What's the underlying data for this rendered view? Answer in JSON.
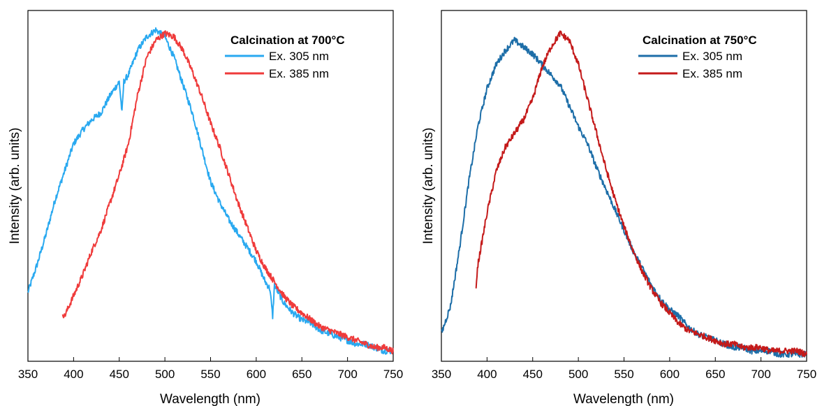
{
  "chart_data": [
    {
      "type": "line",
      "xlabel": "Wavelength (nm)",
      "ylabel": "Intensity (arb. units)",
      "xlim": [
        350,
        750
      ],
      "ylim": [
        0,
        1.0
      ],
      "xticks": [
        "350",
        "400",
        "450",
        "500",
        "550",
        "600",
        "650",
        "700",
        "750"
      ],
      "yticks_shown": false,
      "legend_title": "Calcination at 700°C",
      "legend_position": "top-right",
      "series": [
        {
          "name": "Ex. 305 nm",
          "color": "#29a9f0",
          "x": [
            350,
            360,
            370,
            380,
            390,
            400,
            410,
            420,
            430,
            440,
            450,
            453,
            455,
            460,
            470,
            480,
            490,
            500,
            510,
            520,
            530,
            540,
            550,
            560,
            570,
            580,
            590,
            600,
            610,
            615,
            618,
            620,
            630,
            640,
            650,
            660,
            670,
            680,
            690,
            700,
            710,
            720,
            730,
            740,
            750
          ],
          "y": [
            0.2,
            0.28,
            0.37,
            0.47,
            0.55,
            0.63,
            0.67,
            0.7,
            0.72,
            0.77,
            0.81,
            0.72,
            0.81,
            0.83,
            0.9,
            0.94,
            0.96,
            0.94,
            0.88,
            0.8,
            0.72,
            0.62,
            0.52,
            0.46,
            0.41,
            0.37,
            0.33,
            0.29,
            0.23,
            0.21,
            0.13,
            0.22,
            0.17,
            0.14,
            0.12,
            0.11,
            0.09,
            0.08,
            0.07,
            0.06,
            0.05,
            0.05,
            0.04,
            0.03,
            0.03
          ]
        },
        {
          "name": "Ex. 385 nm",
          "color": "#ef3b3b",
          "x": [
            388,
            390,
            400,
            410,
            420,
            430,
            440,
            450,
            460,
            470,
            480,
            490,
            500,
            510,
            520,
            530,
            540,
            550,
            560,
            570,
            580,
            590,
            600,
            610,
            620,
            630,
            640,
            650,
            660,
            670,
            680,
            690,
            700,
            710,
            720,
            730,
            740,
            750
          ],
          "y": [
            0.14,
            0.13,
            0.19,
            0.25,
            0.32,
            0.38,
            0.46,
            0.54,
            0.63,
            0.77,
            0.88,
            0.93,
            0.95,
            0.94,
            0.9,
            0.84,
            0.77,
            0.69,
            0.62,
            0.54,
            0.46,
            0.39,
            0.32,
            0.27,
            0.23,
            0.19,
            0.16,
            0.14,
            0.12,
            0.1,
            0.09,
            0.08,
            0.07,
            0.06,
            0.05,
            0.04,
            0.04,
            0.03
          ]
        }
      ]
    },
    {
      "type": "line",
      "xlabel": "Wavelength (nm)",
      "ylabel": "Intensity (arb. units)",
      "xlim": [
        350,
        750
      ],
      "ylim": [
        0,
        1.0
      ],
      "xticks": [
        "350",
        "400",
        "450",
        "500",
        "550",
        "600",
        "650",
        "700",
        "750"
      ],
      "yticks_shown": false,
      "legend_title": "Calcination at 750°C",
      "legend_position": "top-right",
      "series": [
        {
          "name": "Ex. 305 nm",
          "color": "#1d6ea8",
          "x": [
            350,
            360,
            370,
            380,
            390,
            400,
            410,
            420,
            430,
            440,
            450,
            460,
            470,
            480,
            490,
            500,
            510,
            520,
            530,
            540,
            550,
            560,
            570,
            580,
            590,
            600,
            610,
            620,
            630,
            640,
            650,
            660,
            670,
            680,
            690,
            700,
            710,
            720,
            730,
            740,
            750
          ],
          "y": [
            0.08,
            0.16,
            0.33,
            0.52,
            0.68,
            0.79,
            0.86,
            0.9,
            0.93,
            0.91,
            0.89,
            0.86,
            0.83,
            0.8,
            0.74,
            0.68,
            0.63,
            0.56,
            0.5,
            0.44,
            0.38,
            0.32,
            0.27,
            0.22,
            0.18,
            0.15,
            0.13,
            0.1,
            0.08,
            0.07,
            0.06,
            0.05,
            0.04,
            0.04,
            0.03,
            0.03,
            0.03,
            0.02,
            0.02,
            0.02,
            0.02
          ]
        },
        {
          "name": "Ex. 385 nm",
          "color": "#c41a1a",
          "x": [
            388,
            390,
            400,
            410,
            420,
            430,
            440,
            450,
            460,
            470,
            480,
            490,
            500,
            510,
            520,
            530,
            540,
            550,
            560,
            570,
            580,
            590,
            600,
            610,
            620,
            630,
            640,
            650,
            660,
            670,
            680,
            690,
            700,
            710,
            720,
            730,
            740,
            750
          ],
          "y": [
            0.22,
            0.28,
            0.43,
            0.55,
            0.62,
            0.66,
            0.7,
            0.76,
            0.85,
            0.91,
            0.95,
            0.93,
            0.86,
            0.76,
            0.66,
            0.56,
            0.47,
            0.39,
            0.32,
            0.26,
            0.21,
            0.17,
            0.14,
            0.11,
            0.09,
            0.08,
            0.07,
            0.06,
            0.05,
            0.05,
            0.04,
            0.04,
            0.04,
            0.03,
            0.03,
            0.03,
            0.03,
            0.02
          ]
        }
      ]
    }
  ]
}
